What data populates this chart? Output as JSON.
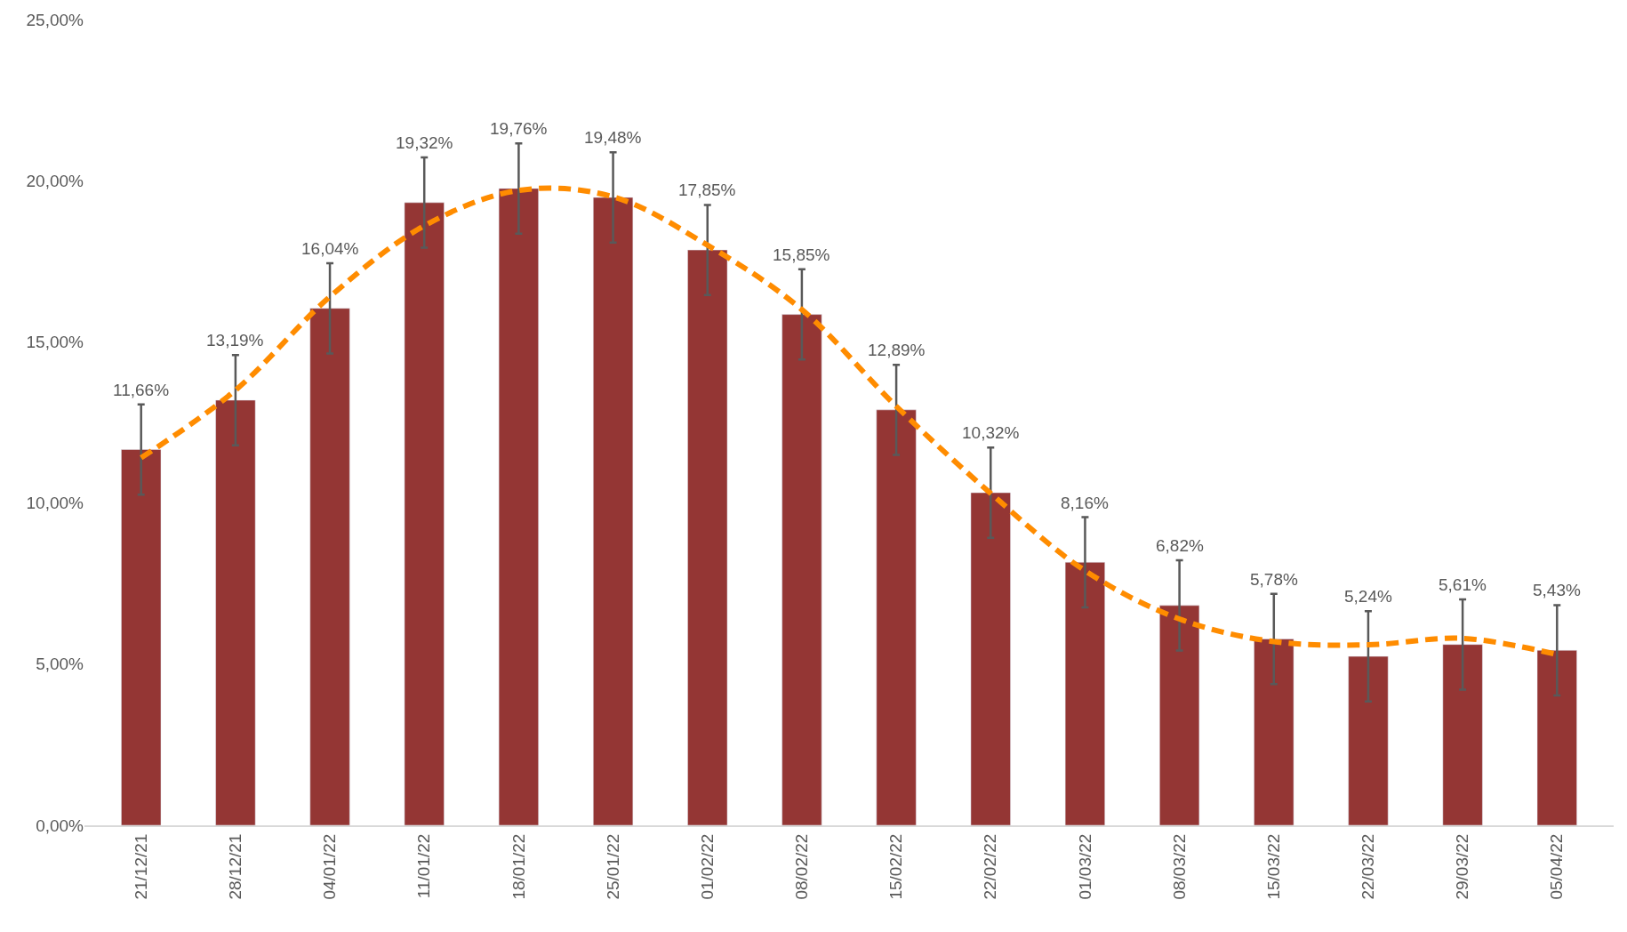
{
  "chart_data": {
    "type": "bar",
    "categories": [
      "21/12/21",
      "28/12/21",
      "04/01/22",
      "11/01/22",
      "18/01/22",
      "25/01/22",
      "01/02/22",
      "08/02/22",
      "15/02/22",
      "22/02/22",
      "01/03/22",
      "08/03/22",
      "15/03/22",
      "22/03/22",
      "29/03/22",
      "05/04/22"
    ],
    "series": [
      {
        "color": "#943634",
        "values": [
          11.66,
          13.19,
          16.04,
          19.32,
          19.76,
          19.48,
          17.85,
          15.85,
          12.89,
          10.32,
          8.16,
          6.82,
          5.78,
          5.24,
          5.61,
          5.43
        ],
        "value_labels": [
          "11,66%",
          "13,19%",
          "16,04%",
          "19,32%",
          "19,76%",
          "19,48%",
          "17,85%",
          "15,85%",
          "12,89%",
          "10,32%",
          "8,16%",
          "6,82%",
          "5,78%",
          "5,24%",
          "5,61%",
          "5,43%"
        ],
        "errors": [
          1.4,
          1.4,
          1.4,
          1.4,
          1.4,
          1.4,
          1.4,
          1.4,
          1.4,
          1.4,
          1.4,
          1.4,
          1.4,
          1.4,
          1.4,
          1.4
        ]
      },
      {
        "type": "line",
        "color": "#ff8c00",
        "line_style": "dashed",
        "values": [
          11.4,
          13.5,
          16.4,
          18.6,
          19.7,
          19.5,
          18.0,
          16.0,
          13.0,
          10.3,
          7.9,
          6.4,
          5.7,
          5.6,
          5.8,
          5.3
        ]
      }
    ],
    "ylim": [
      0,
      25
    ],
    "yticks": [
      {
        "value": 0,
        "label": "0,00%"
      },
      {
        "value": 5,
        "label": "5,00%"
      },
      {
        "value": 10,
        "label": "10,00%"
      },
      {
        "value": 15,
        "label": "15,00%"
      },
      {
        "value": 20,
        "label": "20,00%"
      },
      {
        "value": 25,
        "label": "25,00%"
      }
    ],
    "grid": false
  }
}
